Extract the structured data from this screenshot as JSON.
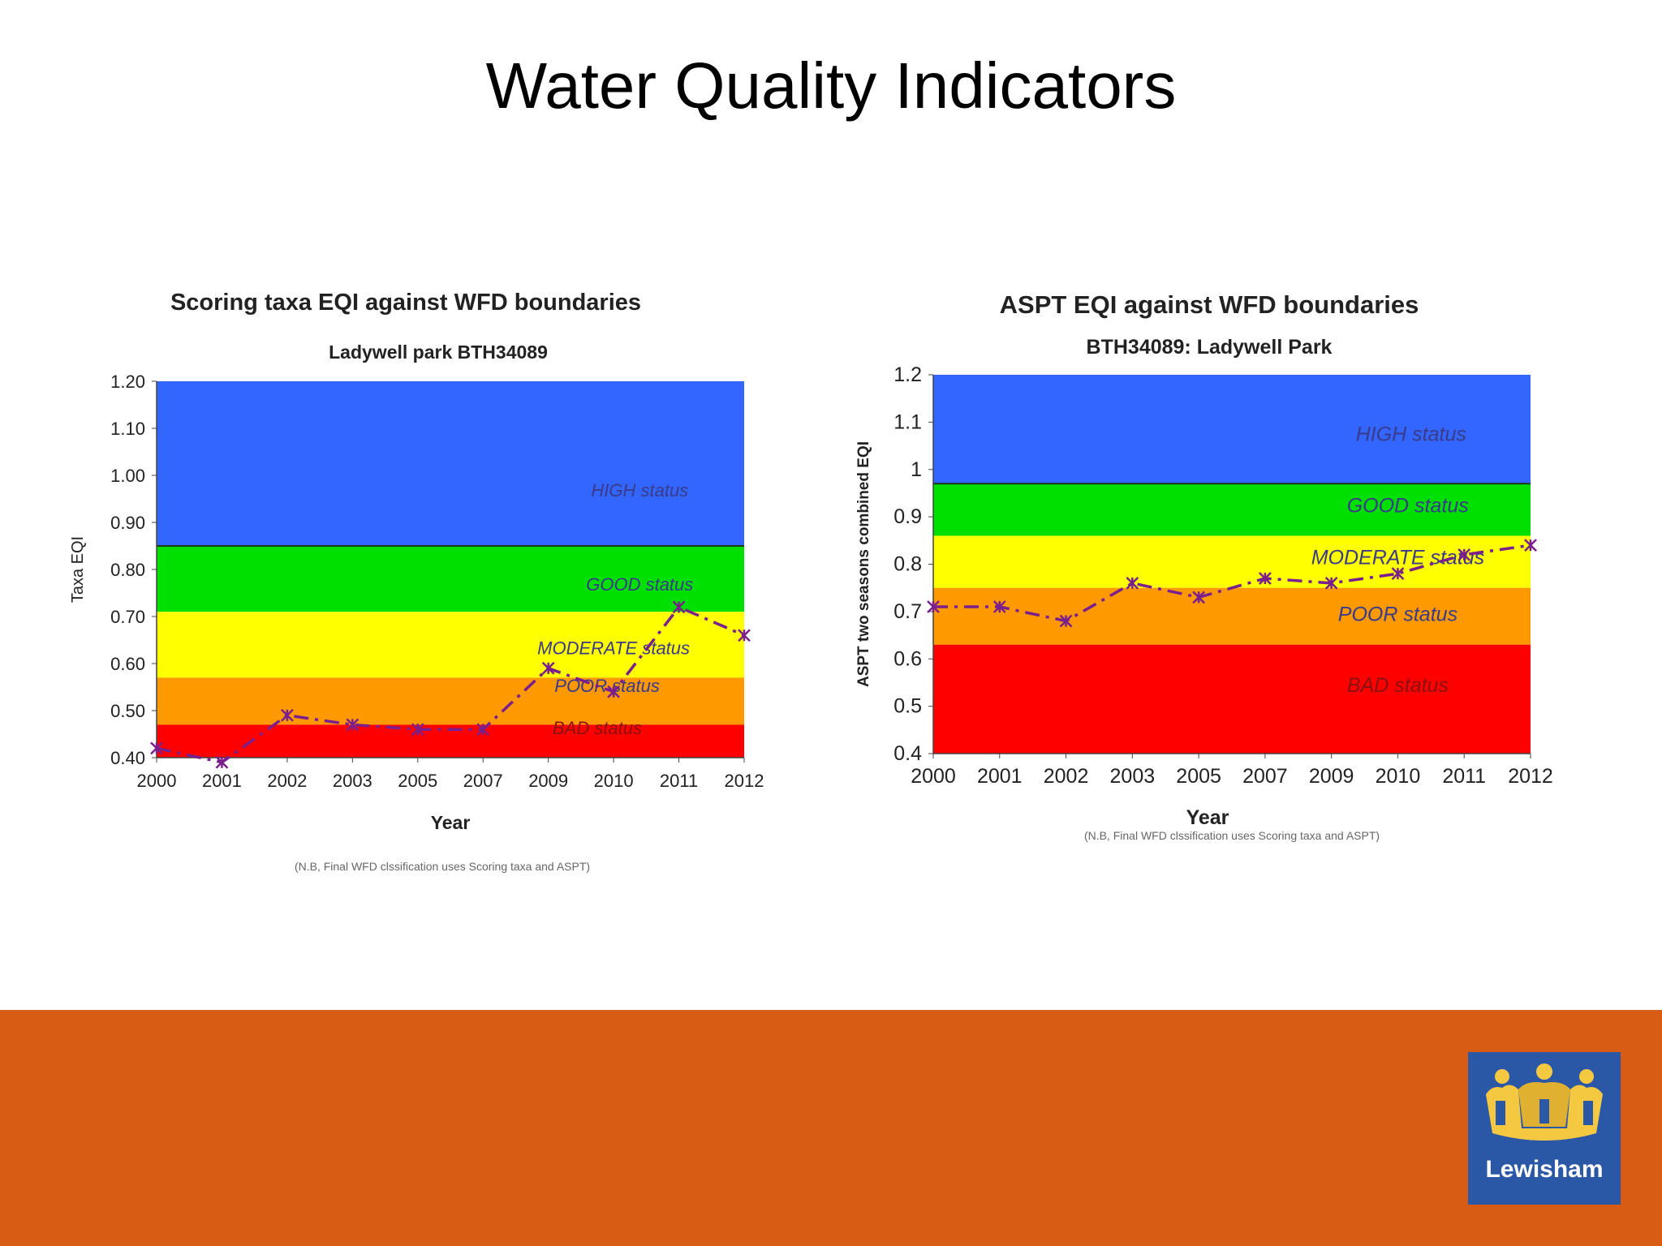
{
  "slide": {
    "title": "Water Quality Indicators"
  },
  "footer": {
    "color": "#d85c13"
  },
  "logo": {
    "text": "Lewisham",
    "icon": "crown-icon",
    "bg": "#2b58a6",
    "crown_color": "#f5c842"
  },
  "chart_data": [
    {
      "type": "line",
      "title": "Scoring taxa EQI against WFD boundaries",
      "subtitle": "Ladywell park BTH34089",
      "xlabel": "Year",
      "ylabel": "Taxa EQI",
      "note": "(N.B, Final WFD clssification uses Scoring taxa and ASPT)",
      "categories": [
        "2000",
        "2001",
        "2002",
        "2003",
        "2005",
        "2007",
        "2009",
        "2010",
        "2011",
        "2012"
      ],
      "ylim": [
        0.4,
        1.2
      ],
      "yticks": [
        "0.40",
        "0.50",
        "0.60",
        "0.70",
        "0.80",
        "0.90",
        "1.00",
        "1.10",
        "1.20"
      ],
      "grid": false,
      "series": [
        {
          "values": [
            0.42,
            0.39,
            0.49,
            0.47,
            0.46,
            0.46,
            0.59,
            0.54,
            0.72,
            0.66
          ],
          "color": "#7a1f8c"
        }
      ],
      "bands": [
        {
          "label": "HIGH status",
          "from": 0.85,
          "to": 1.2,
          "color": "#3366ff",
          "label_x": 7.4,
          "label_y": 0.955
        },
        {
          "label": "GOOD status",
          "from": 0.71,
          "to": 0.85,
          "color": "#00e000",
          "label_x": 7.4,
          "label_y": 0.755
        },
        {
          "label": "MODERATE status",
          "from": 0.57,
          "to": 0.71,
          "color": "#ffff00",
          "label_x": 7.0,
          "label_y": 0.62
        },
        {
          "label": "POOR status",
          "from": 0.47,
          "to": 0.57,
          "color": "#ff9900",
          "label_x": 6.9,
          "label_y": 0.54
        },
        {
          "label": "BAD status",
          "from": 0.4,
          "to": 0.47,
          "color": "#ff0000",
          "label_x": 6.75,
          "label_y": 0.45
        }
      ]
    },
    {
      "type": "line",
      "title": "ASPT EQI against WFD boundaries",
      "subtitle": "BTH34089: Ladywell Park",
      "xlabel": "Year",
      "ylabel": "ASPT two seasons combined EQI",
      "note": "(N.B, Final WFD clssification uses Scoring taxa and ASPT)",
      "categories": [
        "2000",
        "2001",
        "2002",
        "2003",
        "2005",
        "2007",
        "2009",
        "2010",
        "2011",
        "2012"
      ],
      "ylim": [
        0.4,
        1.2
      ],
      "yticks": [
        "0.4",
        "0.5",
        "0.6",
        "0.7",
        "0.8",
        "0.9",
        "1",
        "1.1",
        "1.2"
      ],
      "grid": false,
      "series": [
        {
          "values": [
            0.71,
            0.71,
            0.68,
            0.76,
            0.73,
            0.77,
            0.76,
            0.78,
            0.82,
            0.84
          ],
          "color": "#7a1f8c"
        }
      ],
      "bands": [
        {
          "label": "HIGH status",
          "from": 0.97,
          "to": 1.2,
          "color": "#3366ff",
          "label_x": 7.2,
          "label_y": 1.06
        },
        {
          "label": "GOOD status",
          "from": 0.86,
          "to": 0.97,
          "color": "#00e000",
          "label_x": 7.15,
          "label_y": 0.91
        },
        {
          "label": "MODERATE status",
          "from": 0.75,
          "to": 0.86,
          "color": "#ffff00",
          "label_x": 7.0,
          "label_y": 0.8
        },
        {
          "label": "POOR status",
          "from": 0.63,
          "to": 0.75,
          "color": "#ff9900",
          "label_x": 7.0,
          "label_y": 0.68
        },
        {
          "label": "BAD status",
          "from": 0.4,
          "to": 0.63,
          "color": "#ff0000",
          "label_x": 7.0,
          "label_y": 0.53
        }
      ]
    }
  ]
}
